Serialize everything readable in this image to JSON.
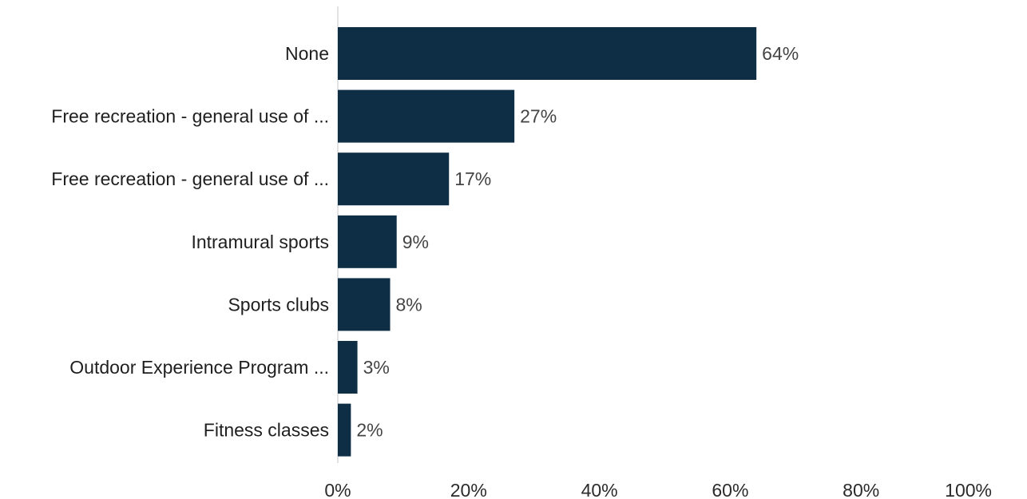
{
  "chart_data": {
    "type": "bar",
    "orientation": "horizontal",
    "categories": [
      "None",
      "Free recreation - general use of ...",
      "Free recreation - general use of ...",
      "Intramural sports",
      "Sports clubs",
      "Outdoor Experience Program ...",
      "Fitness classes"
    ],
    "values": [
      64,
      27,
      17,
      9,
      8,
      3,
      2
    ],
    "value_labels": [
      "64%",
      "27%",
      "17%",
      "9%",
      "8%",
      "3%",
      "2%"
    ],
    "x_ticks": [
      "0%",
      "20%",
      "40%",
      "60%",
      "80%",
      "100%"
    ],
    "xlim": [
      0,
      100
    ],
    "unit": "%",
    "grid": false,
    "legend": "none",
    "bar_color": "#0d2e45",
    "axis_color": "#d9d9d9"
  }
}
